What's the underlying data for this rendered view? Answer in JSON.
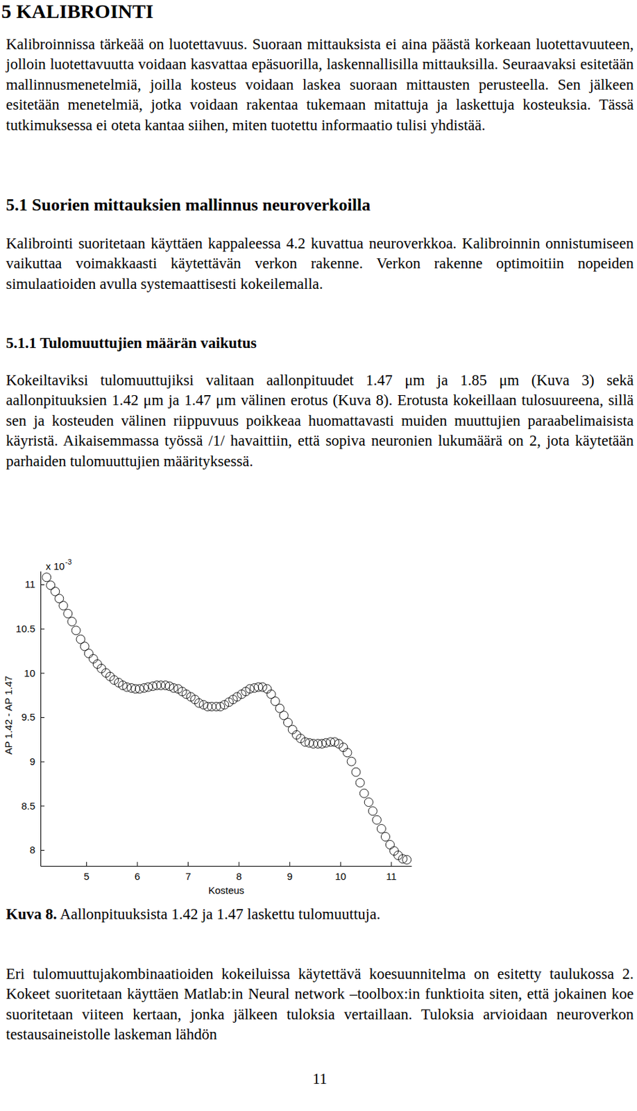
{
  "document": {
    "sections": [
      {
        "heading": "5 KALIBROINTI",
        "paragraphs": [
          "Kalibroinnissa tärkeää on luotettavuus. Suoraan mittauksista ei aina päästä korkeaan luotettavuuteen, jolloin luotettavuutta voidaan kasvattaa epäsuorilla, laskennallisilla mittauksilla. Seuraavaksi esitetään mallinnusmenetelmiä, joilla kosteus voidaan laskea suoraan mittausten perusteella. Sen jälkeen esitetään menetelmiä, jotka voidaan rakentaa tukemaan mitattuja ja laskettuja kosteuksia. Tässä tutkimuksessa ei oteta kantaa siihen, miten tuotettu informaatio tulisi yhdistää."
        ]
      },
      {
        "heading": "5.1 Suorien mittauksien mallinnus neuroverkoilla",
        "paragraphs": [
          "Kalibrointi suoritetaan käyttäen kappaleessa 4.2 kuvattua neuroverkkoa. Kalibroinnin onnistumiseen vaikuttaa voimakkaasti käytettävän verkon rakenne. Verkon rakenne optimoitiin nopeiden simulaatioiden avulla systemaattisesti kokeilemalla."
        ]
      },
      {
        "heading": "5.1.1 Tulomuuttujien määrän vaikutus",
        "paragraphs": [
          "Kokeiltaviksi tulomuuttujiksi valitaan aallonpituudet 1.47 μm ja 1.85 μm (Kuva 3) sekä aallonpituuksien 1.42 μm ja 1.47 μm välinen erotus (Kuva 8). Erotusta kokeillaan tulosuureena, sillä sen ja kosteuden välinen riippuvuus poikkeaa huomattavasti muiden muuttujien paraabelimaisista käyristä. Aikaisemmassa työssä /1/ havaittiin, että sopiva neuronien lukumäärä on 2, jota käytetään parhaiden tulomuuttujien määrityksessä."
        ]
      }
    ],
    "caption": {
      "label": "Kuva 8.",
      "text": "Aallonpituuksista 1.42 ja 1.47 laskettu tulomuuttuja."
    },
    "after_figure": [
      "Eri tulomuuttujakombinaatioiden kokeiluissa käytettävä koesuunnitelma on esitetty taulukossa 2. Kokeet suoritetaan käyttäen Matlab:in Neural network –toolbox:in funktioita siten, että jokainen koe suoritetaan viiteen kertaan, jonka jälkeen tuloksia vertaillaan. Tuloksia arvioidaan neuroverkon testausaineistolle laskeman lähdön"
    ],
    "page_number": "11"
  },
  "chart_data": {
    "type": "scatter",
    "x_label": "Kosteus",
    "y_label": "AP 1.42 - AP 1.47",
    "annotations": [
      {
        "text": "x 10",
        "superscript": "-3"
      }
    ],
    "x": [
      4.22,
      4.3,
      4.39,
      4.47,
      4.55,
      4.64,
      4.72,
      4.8,
      4.89,
      4.97,
      5.05,
      5.14,
      5.22,
      5.3,
      5.39,
      5.47,
      5.55,
      5.64,
      5.72,
      5.8,
      5.89,
      5.97,
      6.05,
      6.14,
      6.22,
      6.31,
      6.39,
      6.47,
      6.56,
      6.64,
      6.72,
      6.81,
      6.89,
      6.97,
      7.06,
      7.14,
      7.22,
      7.31,
      7.39,
      7.47,
      7.56,
      7.64,
      7.72,
      7.81,
      7.89,
      7.97,
      8.06,
      8.14,
      8.22,
      8.31,
      8.39,
      8.47,
      8.56,
      8.64,
      8.72,
      8.81,
      8.89,
      8.97,
      9.06,
      9.14,
      9.22,
      9.31,
      9.39,
      9.47,
      9.56,
      9.64,
      9.72,
      9.81,
      9.89,
      9.97,
      10.06,
      10.14,
      10.22,
      10.31,
      10.39,
      10.47,
      10.56,
      10.64,
      10.72,
      10.81,
      10.89,
      10.98,
      11.06,
      11.14,
      11.23,
      11.31
    ],
    "values": [
      11.08,
      10.99,
      10.92,
      10.84,
      10.76,
      10.67,
      10.58,
      10.48,
      10.38,
      10.3,
      10.22,
      10.16,
      10.1,
      10.05,
      10.0,
      9.96,
      9.92,
      9.89,
      9.86,
      9.84,
      9.83,
      9.82,
      9.82,
      9.83,
      9.84,
      9.85,
      9.86,
      9.86,
      9.86,
      9.85,
      9.83,
      9.82,
      9.79,
      9.76,
      9.73,
      9.7,
      9.66,
      9.64,
      9.62,
      9.62,
      9.62,
      9.62,
      9.64,
      9.67,
      9.7,
      9.73,
      9.76,
      9.79,
      9.82,
      9.83,
      9.84,
      9.84,
      9.82,
      9.76,
      9.68,
      9.6,
      9.52,
      9.44,
      9.36,
      9.3,
      9.26,
      9.22,
      9.21,
      9.2,
      9.2,
      9.2,
      9.21,
      9.22,
      9.22,
      9.2,
      9.16,
      9.1,
      9.0,
      8.88,
      8.76,
      8.64,
      8.54,
      8.44,
      8.34,
      8.24,
      8.15,
      8.06,
      7.99,
      7.94,
      7.9,
      7.89
    ],
    "color": "#000000",
    "marker": "circle",
    "grid": false,
    "xlim": [
      4.1,
      11.4
    ],
    "ylim": [
      7.82,
      11.15
    ],
    "xticks": [
      5,
      6,
      7,
      8,
      9,
      10,
      11
    ],
    "yticks": [
      8,
      8.5,
      9,
      9.5,
      10,
      10.5,
      11
    ]
  }
}
